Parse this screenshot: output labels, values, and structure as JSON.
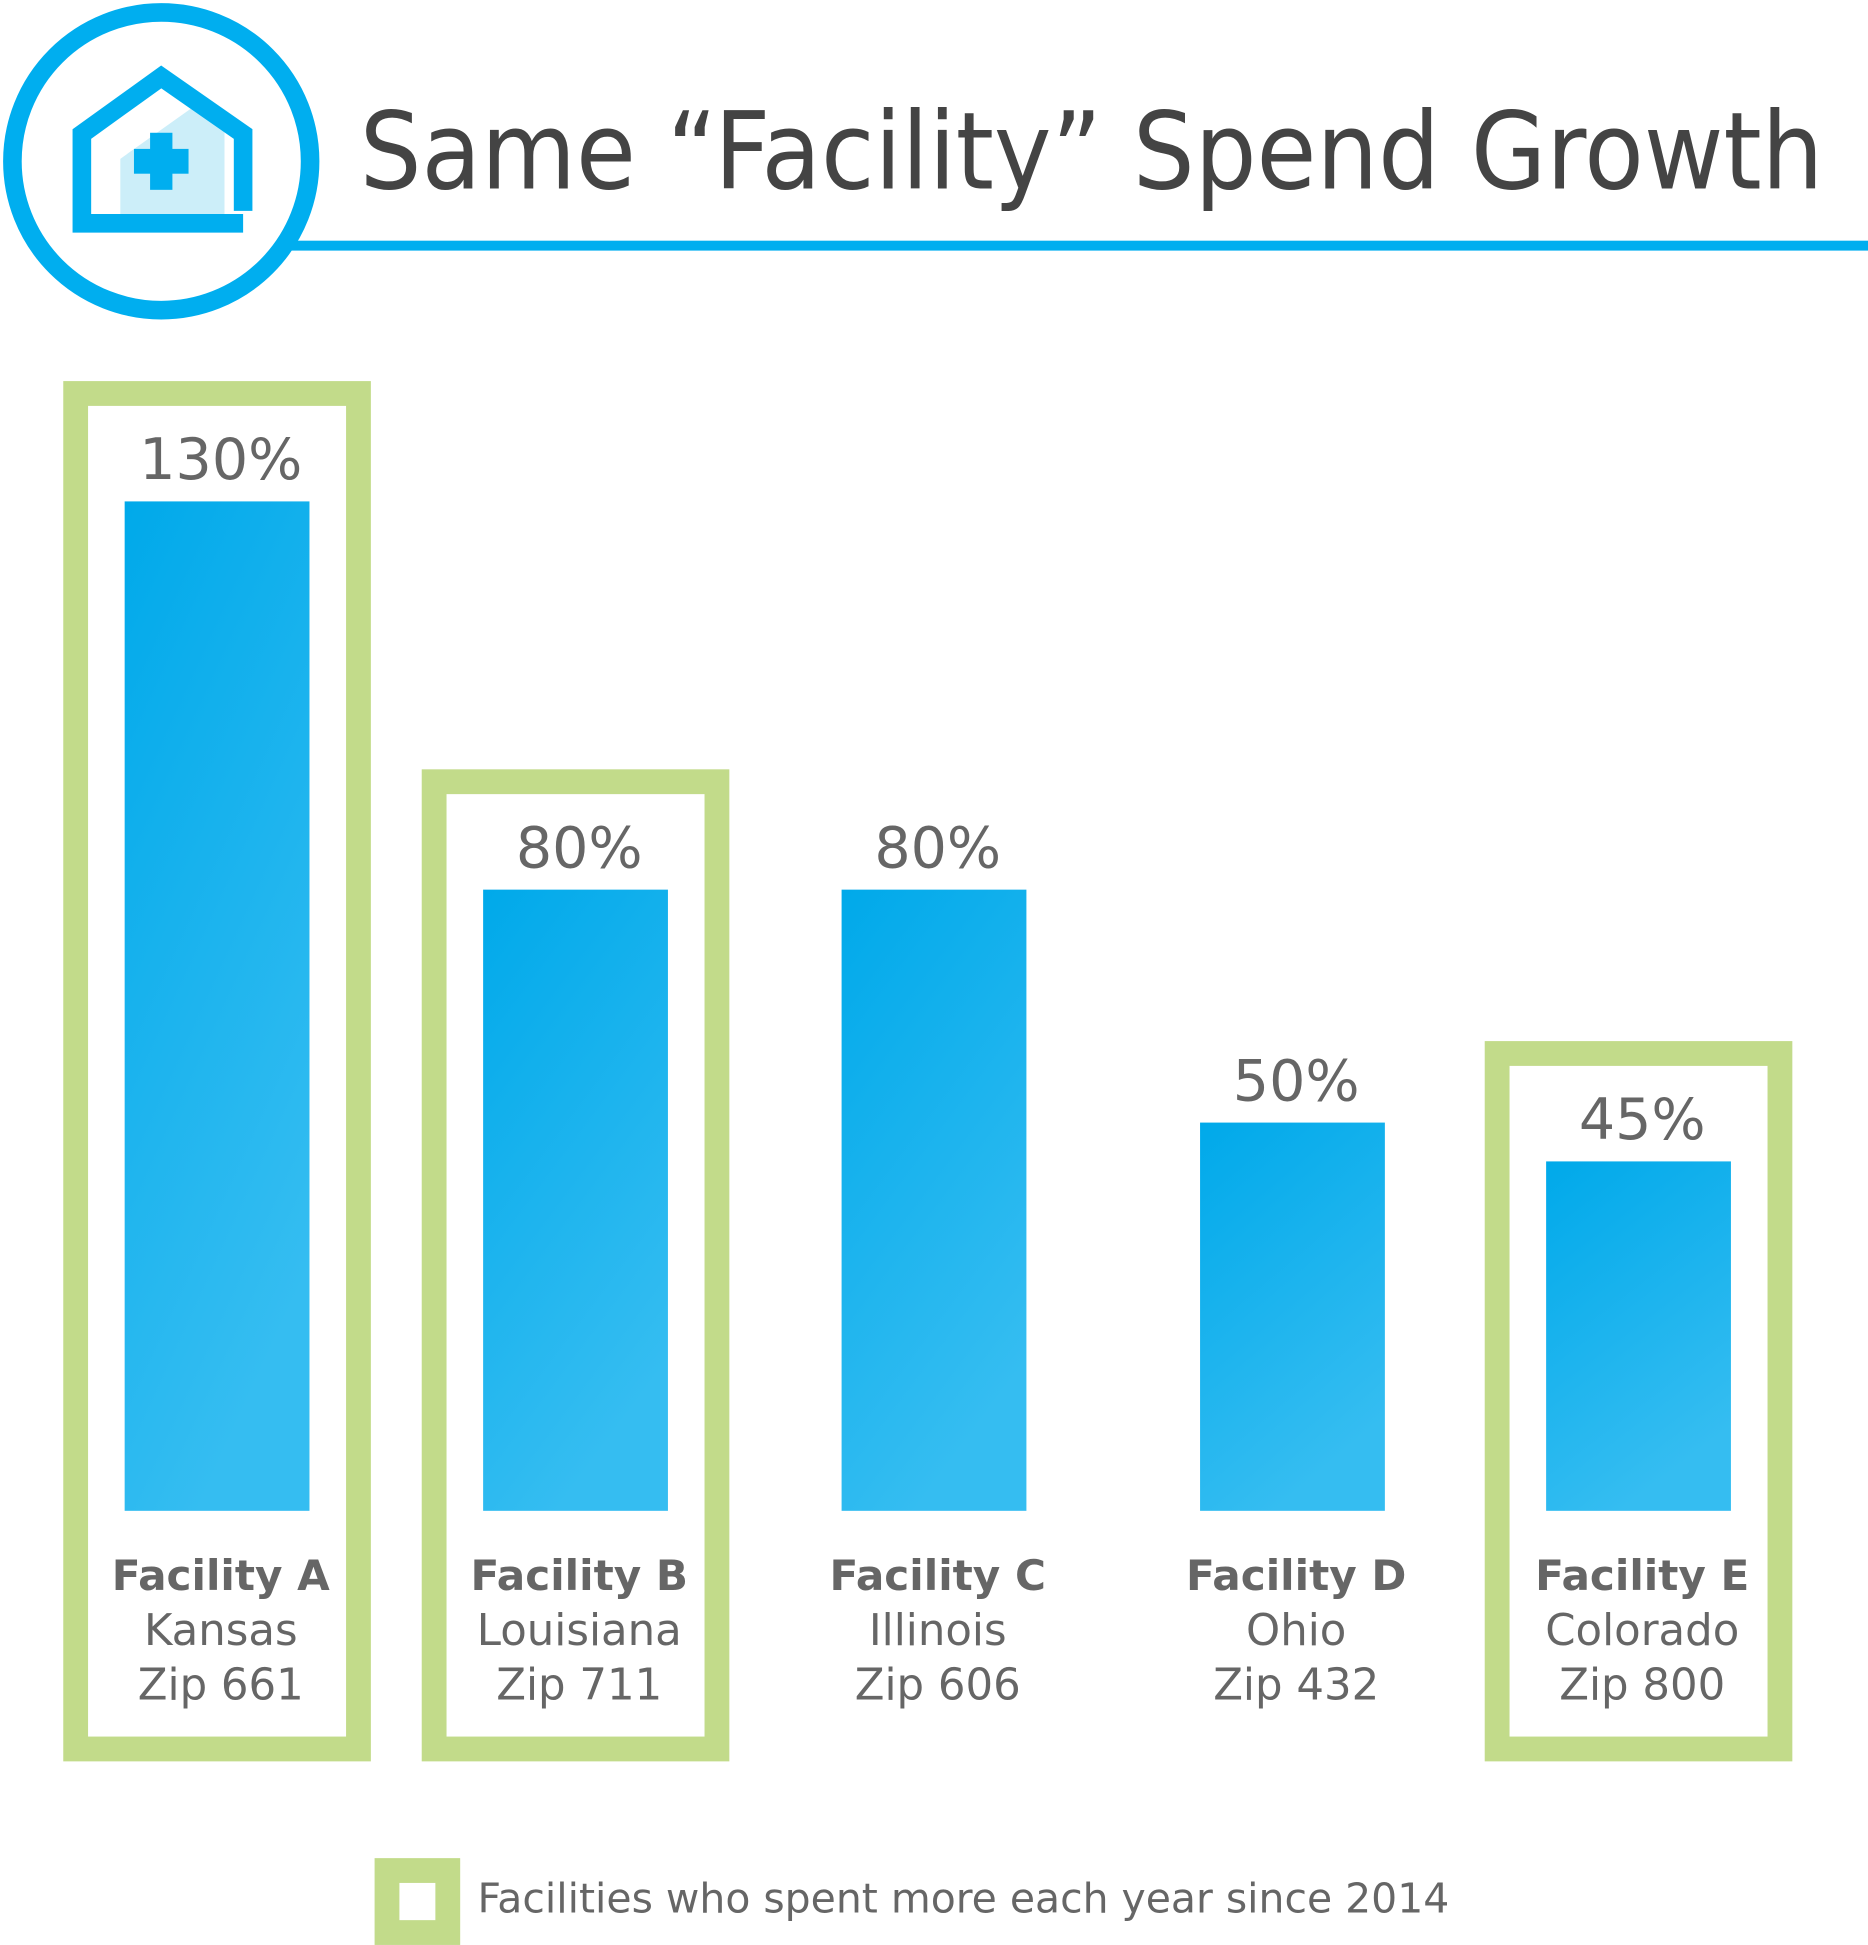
{
  "header": {
    "title": "Same “Facility” Spend Growth",
    "icon": "hospital-house-icon"
  },
  "colors": {
    "accent": "#00AEEF",
    "bar_top": "#00A9EA",
    "bar_bottom": "#35BDF1",
    "highlight_frame": "#C2DB8A",
    "title_text": "#444444",
    "label_text": "#666666"
  },
  "chart_data": {
    "type": "bar",
    "title": "Same “Facility” Spend Growth",
    "xlabel": "",
    "ylabel": "",
    "grid": false,
    "ylim": [
      0,
      130
    ],
    "categories": [
      "Facility A",
      "Facility B",
      "Facility C",
      "Facility D",
      "Facility E"
    ],
    "values": [
      130,
      80,
      80,
      50,
      45
    ],
    "value_labels": [
      "130%",
      "80%",
      "80%",
      "50%",
      "45%"
    ],
    "bars": [
      {
        "name": "Facility A",
        "state": "Kansas",
        "zip": "Zip 661",
        "value": 130,
        "label": "130%",
        "highlighted": true
      },
      {
        "name": "Facility B",
        "state": "Louisiana",
        "zip": "Zip 711",
        "value": 80,
        "label": "80%",
        "highlighted": true
      },
      {
        "name": "Facility C",
        "state": "Illinois",
        "zip": "Zip 606",
        "value": 80,
        "label": "80%",
        "highlighted": false
      },
      {
        "name": "Facility D",
        "state": "Ohio",
        "zip": "Zip 432",
        "value": 50,
        "label": "50%",
        "highlighted": false
      },
      {
        "name": "Facility E",
        "state": "Colorado",
        "zip": "Zip 800",
        "value": 45,
        "label": "45%",
        "highlighted": true
      }
    ],
    "legend": {
      "position": "bottom",
      "entries": [
        {
          "label": "Facilities who spent more each year since 2014",
          "marker": "green-outlined-square"
        }
      ]
    }
  }
}
